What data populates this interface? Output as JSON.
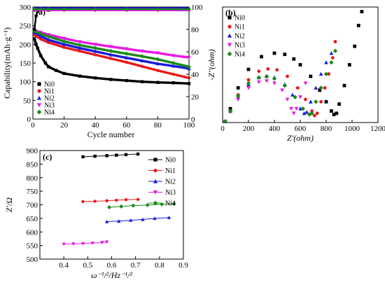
{
  "colors": {
    "Ni0": "#000000",
    "Ni1": "#e8191a",
    "Ni2": "#1a1adb",
    "Ni3": "#e619e6",
    "Ni4": "#1a8a1a"
  },
  "legend_labels": [
    "Ni0",
    "Ni1",
    "Ni2",
    "Ni3",
    "Ni4"
  ],
  "chart_data": [
    {
      "panel": "(a)",
      "type": "scatter",
      "xlabel": "Cycle number",
      "ylabel": "Capability(mAh·g⁻¹)",
      "y2label": "",
      "xlim": [
        0,
        100
      ],
      "ylim": [
        0,
        300
      ],
      "y2lim": [
        0,
        100
      ],
      "xticks": [
        0,
        20,
        40,
        60,
        80,
        100
      ],
      "yticks": [
        0,
        50,
        100,
        150,
        200,
        250,
        300
      ],
      "y2ticks": [
        0,
        20,
        40,
        60,
        80,
        100
      ],
      "legend_position": "lower-left",
      "capacity_series": [
        {
          "name": "Ni0",
          "x": [
            1,
            2,
            3,
            5,
            8,
            10,
            15,
            20,
            30,
            40,
            50,
            60,
            70,
            80,
            90,
            100
          ],
          "y": [
            215,
            200,
            190,
            170,
            150,
            140,
            130,
            122,
            115,
            110,
            106,
            103,
            100,
            98,
            97,
            95
          ]
        },
        {
          "name": "Ni1",
          "x": [
            1,
            5,
            10,
            20,
            30,
            40,
            50,
            60,
            70,
            80,
            90,
            100
          ],
          "y": [
            225,
            214,
            205,
            192,
            182,
            172,
            162,
            152,
            141,
            130,
            120,
            110
          ]
        },
        {
          "name": "Ni2",
          "x": [
            1,
            5,
            10,
            20,
            30,
            40,
            50,
            60,
            70,
            80,
            90,
            100
          ],
          "y": [
            232,
            222,
            212,
            200,
            190,
            181,
            172,
            164,
            156,
            148,
            142,
            135
          ]
        },
        {
          "name": "Ni3",
          "x": [
            1,
            5,
            10,
            20,
            30,
            40,
            50,
            60,
            70,
            80,
            90,
            100
          ],
          "y": [
            238,
            232,
            226,
            216,
            207,
            200,
            194,
            188,
            182,
            177,
            170,
            165
          ]
        },
        {
          "name": "Ni4",
          "x": [
            1,
            5,
            10,
            20,
            30,
            40,
            50,
            60,
            70,
            80,
            90,
            100
          ],
          "y": [
            236,
            228,
            221,
            208,
            198,
            190,
            182,
            175,
            168,
            160,
            150,
            140
          ]
        }
      ],
      "efficiency_series": [
        {
          "name": "Ni0",
          "x": [
            1,
            2,
            3,
            5,
            10,
            20,
            40,
            60,
            80,
            100
          ],
          "y": [
            80,
            92,
            96,
            97,
            97,
            98,
            98,
            98,
            98,
            98
          ]
        },
        {
          "name": "Ni1",
          "x": [
            1,
            5,
            10,
            20,
            40,
            60,
            80,
            100
          ],
          "y": [
            97,
            97,
            97,
            97,
            97,
            97,
            97,
            97
          ]
        },
        {
          "name": "Ni2",
          "x": [
            1,
            5,
            10,
            20,
            40,
            60,
            80,
            100
          ],
          "y": [
            99,
            99,
            99,
            99,
            99,
            99,
            99,
            99
          ]
        },
        {
          "name": "Ni3",
          "x": [
            1,
            5,
            10,
            20,
            40,
            60,
            80,
            100
          ],
          "y": [
            97,
            97,
            97,
            97,
            97,
            97,
            97,
            97
          ]
        },
        {
          "name": "Ni4",
          "x": [
            1,
            5,
            10,
            20,
            40,
            60,
            80,
            100
          ],
          "y": [
            98,
            98,
            98,
            98,
            98,
            98,
            98,
            98
          ]
        }
      ]
    },
    {
      "panel": "(b)",
      "type": "scatter",
      "xlabel": "Z'(ohm)",
      "ylabel": "-Z''(ohm)",
      "xlim": [
        0,
        1200
      ],
      "ylim": [
        0,
        500
      ],
      "xticks": [
        0,
        200,
        400,
        600,
        800,
        1000,
        1200
      ],
      "legend_position": "top-left",
      "series": [
        {
          "name": "Ni0",
          "x": [
            20,
            60,
            120,
            200,
            300,
            400,
            480,
            550,
            600,
            680,
            750,
            800,
            840,
            860,
            880,
            900,
            940,
            980,
            1020,
            1050,
            1075
          ],
          "y": [
            5,
            60,
            150,
            230,
            285,
            300,
            295,
            275,
            250,
            200,
            140,
            90,
            50,
            35,
            40,
            80,
            160,
            250,
            330,
            420,
            480
          ]
        },
        {
          "name": "Ni1",
          "x": [
            20,
            60,
            120,
            200,
            280,
            350,
            420,
            500,
            580,
            640,
            690,
            710,
            730,
            760,
            790,
            820,
            850,
            870
          ],
          "y": [
            5,
            50,
            120,
            185,
            222,
            232,
            228,
            200,
            150,
            100,
            50,
            30,
            40,
            90,
            150,
            210,
            280,
            350
          ]
        },
        {
          "name": "Ni2",
          "x": [
            20,
            60,
            120,
            200,
            280,
            340,
            400,
            480,
            540,
            600,
            630,
            650,
            680,
            720,
            760,
            800,
            840
          ],
          "y": [
            5,
            50,
            110,
            165,
            195,
            200,
            195,
            165,
            120,
            60,
            40,
            45,
            90,
            150,
            210,
            260,
            300
          ]
        },
        {
          "name": "Ni3",
          "x": [
            20,
            60,
            120,
            200,
            280,
            340,
            400,
            460,
            500,
            530,
            550,
            570,
            600,
            640
          ],
          "y": [
            5,
            45,
            100,
            150,
            175,
            180,
            170,
            140,
            100,
            60,
            40,
            60,
            110,
            170
          ]
        },
        {
          "name": "Ni4",
          "x": [
            20,
            60,
            120,
            200,
            280,
            340,
            400,
            480,
            560,
            620,
            670,
            690,
            720,
            760,
            800,
            840,
            870
          ],
          "y": [
            5,
            50,
            115,
            170,
            195,
            200,
            190,
            160,
            110,
            60,
            35,
            40,
            90,
            150,
            210,
            260,
            310
          ]
        }
      ]
    },
    {
      "panel": "(c)",
      "type": "line",
      "xlabel": "ω⁻¹/²/Hz⁻¹/²",
      "ylabel": "Z'/Ω",
      "xlim": [
        0.3,
        0.9
      ],
      "ylim": [
        500,
        900
      ],
      "xticks": [
        0.4,
        0.5,
        0.6,
        0.7,
        0.8,
        0.9
      ],
      "yticks": [
        500,
        550,
        600,
        650,
        700,
        750,
        800,
        850,
        900
      ],
      "legend_position": "top-right",
      "series": [
        {
          "name": "Ni0",
          "x": [
            0.48,
            0.53,
            0.58,
            0.62,
            0.66,
            0.71
          ],
          "y": [
            877,
            879,
            881,
            883,
            885,
            887
          ]
        },
        {
          "name": "Ni1",
          "x": [
            0.48,
            0.53,
            0.58,
            0.62,
            0.66,
            0.71
          ],
          "y": [
            712,
            713,
            715,
            717,
            719,
            720
          ]
        },
        {
          "name": "Ni2",
          "x": [
            0.58,
            0.63,
            0.68,
            0.73,
            0.78,
            0.84
          ],
          "y": [
            638,
            640,
            643,
            646,
            650,
            653
          ]
        },
        {
          "name": "Ni3",
          "x": [
            0.4,
            0.44,
            0.48,
            0.52,
            0.56,
            0.58
          ],
          "y": [
            555,
            556,
            557,
            559,
            561,
            563
          ]
        },
        {
          "name": "Ni4",
          "x": [
            0.59,
            0.64,
            0.69,
            0.75,
            0.81,
            0.86
          ],
          "y": [
            691,
            694,
            697,
            699,
            702,
            704
          ]
        }
      ]
    }
  ]
}
